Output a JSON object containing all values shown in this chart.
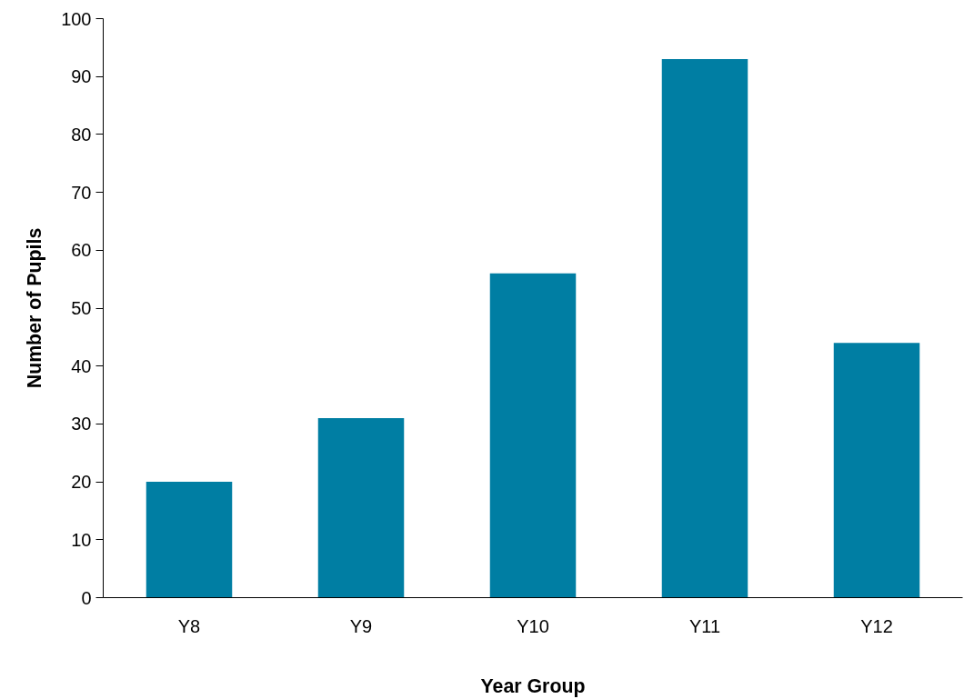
{
  "chart_data": {
    "type": "bar",
    "xlabel": "Year Group",
    "ylabel": "Number of Pupils",
    "categories": [
      "Y8",
      "Y9",
      "Y10",
      "Y11",
      "Y12"
    ],
    "series": [
      {
        "color": "#007ea3",
        "values": [
          20,
          31,
          56,
          93,
          44
        ]
      }
    ],
    "ylim": [
      0,
      100
    ],
    "yticks": [
      0,
      10,
      20,
      30,
      40,
      50,
      60,
      70,
      80,
      90,
      100
    ],
    "grid": false
  }
}
